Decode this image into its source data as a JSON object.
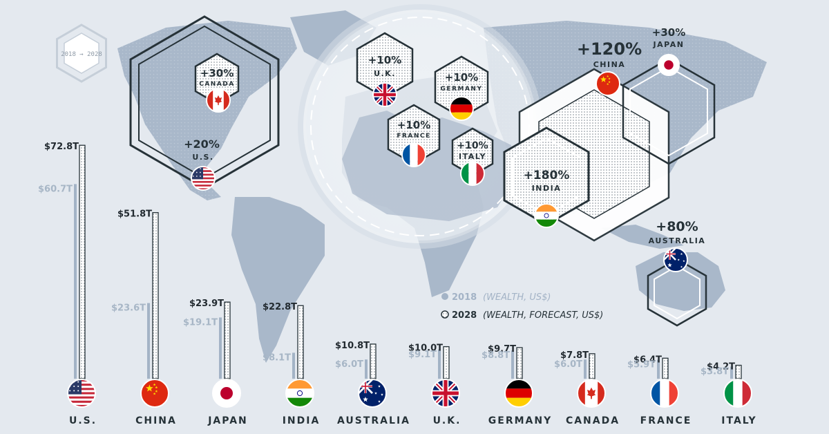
{
  "badge": {
    "text": "2018 → 2028"
  },
  "legend": {
    "y2018_year": "2018",
    "y2018_desc": "(WEALTH, US$)",
    "y2028_year": "2028",
    "y2028_desc": "(WEALTH, FORECAST, US$)"
  },
  "colors": {
    "background": "#e4e9ef",
    "land": "#a9b8ca",
    "bar2018": "#a3b3c6",
    "bar2028": "#ffffff",
    "dark": "#263238"
  },
  "map_callouts": [
    {
      "country": "CANADA",
      "change": "+30%",
      "flag": "canada-flag"
    },
    {
      "country": "U.S.",
      "change": "+20%",
      "flag": "us-flag"
    },
    {
      "country": "U.K.",
      "change": "+10%",
      "flag": "uk-flag"
    },
    {
      "country": "GERMANY",
      "change": "+10%",
      "flag": "germany-flag"
    },
    {
      "country": "FRANCE",
      "change": "+10%",
      "flag": "france-flag"
    },
    {
      "country": "ITALY",
      "change": "+10%",
      "flag": "italy-flag"
    },
    {
      "country": "CHINA",
      "change": "+120%",
      "flag": "china-flag"
    },
    {
      "country": "JAPAN",
      "change": "+30%",
      "flag": "japan-flag"
    },
    {
      "country": "INDIA",
      "change": "+180%",
      "flag": "india-flag"
    },
    {
      "country": "AUSTRALIA",
      "change": "+80%",
      "flag": "australia-flag"
    }
  ],
  "chart_data": {
    "type": "bar",
    "categories": [
      "U.S.",
      "CHINA",
      "JAPAN",
      "INDIA",
      "AUSTRALIA",
      "U.K.",
      "GERMANY",
      "CANADA",
      "FRANCE",
      "ITALY"
    ],
    "series": [
      {
        "name": "2018",
        "values": [
          60.7,
          23.6,
          19.1,
          8.1,
          6.0,
          9.1,
          8.8,
          6.0,
          5.9,
          3.8
        ],
        "labels": [
          "$60.7T",
          "$23.6T",
          "$19.1T",
          "$8.1T",
          "$6.0T",
          "$9.1T",
          "$8.8T",
          "$6.0T",
          "$5.9T",
          "$3.8T"
        ]
      },
      {
        "name": "2028",
        "values": [
          72.8,
          51.8,
          23.9,
          22.8,
          10.8,
          10.0,
          9.7,
          7.8,
          6.4,
          4.2
        ],
        "labels": [
          "$72.8T",
          "$51.8T",
          "$23.9T",
          "$22.8T",
          "$10.8T",
          "$10.0T",
          "$9.7T",
          "$7.8T",
          "$6.4T",
          "$4.2T"
        ]
      }
    ],
    "ylabel": "",
    "xlabel": "",
    "title": ""
  }
}
